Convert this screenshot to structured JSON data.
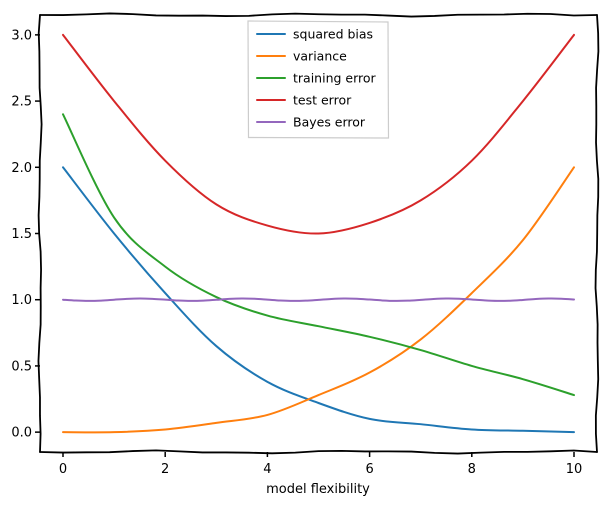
{
  "chart_data": {
    "type": "line",
    "title": "",
    "xlabel": "model flexibility",
    "ylabel": "",
    "xlim": [
      -0.45,
      10.45
    ],
    "ylim": [
      -0.15,
      3.15
    ],
    "xticks": [
      0,
      2,
      4,
      6,
      8,
      10
    ],
    "xtick_labels": [
      "0",
      "2",
      "4",
      "6",
      "8",
      "10"
    ],
    "yticks": [
      0.0,
      0.5,
      1.0,
      1.5,
      2.0,
      2.5,
      3.0
    ],
    "ytick_labels": [
      "0.0",
      "0.5",
      "1.0",
      "1.5",
      "2.0",
      "2.5",
      "3.0"
    ],
    "grid": false,
    "legend_position": "top-center",
    "x": [
      0,
      1,
      2,
      3,
      4,
      5,
      6,
      7,
      8,
      9,
      10
    ],
    "series": [
      {
        "name": "squared bias",
        "color": "#1f77b4",
        "values": [
          2.0,
          1.5,
          1.05,
          0.65,
          0.38,
          0.22,
          0.1,
          0.06,
          0.02,
          0.01,
          0.0
        ]
      },
      {
        "name": "variance",
        "color": "#ff7f0e",
        "values": [
          0.0,
          0.0,
          0.02,
          0.07,
          0.13,
          0.28,
          0.45,
          0.7,
          1.05,
          1.45,
          2.0
        ]
      },
      {
        "name": "training error",
        "color": "#2ca02c",
        "values": [
          2.4,
          1.62,
          1.25,
          1.02,
          0.88,
          0.8,
          0.72,
          0.62,
          0.5,
          0.4,
          0.28
        ]
      },
      {
        "name": "test error",
        "color": "#d62728",
        "values": [
          3.0,
          2.5,
          2.05,
          1.72,
          1.56,
          1.5,
          1.58,
          1.75,
          2.05,
          2.5,
          3.0
        ]
      },
      {
        "name": "Bayes error",
        "color": "#9467bd",
        "values": [
          1.0,
          1.0,
          1.0,
          1.0,
          1.0,
          1.0,
          1.0,
          1.0,
          1.0,
          1.0,
          1.0
        ]
      }
    ]
  }
}
